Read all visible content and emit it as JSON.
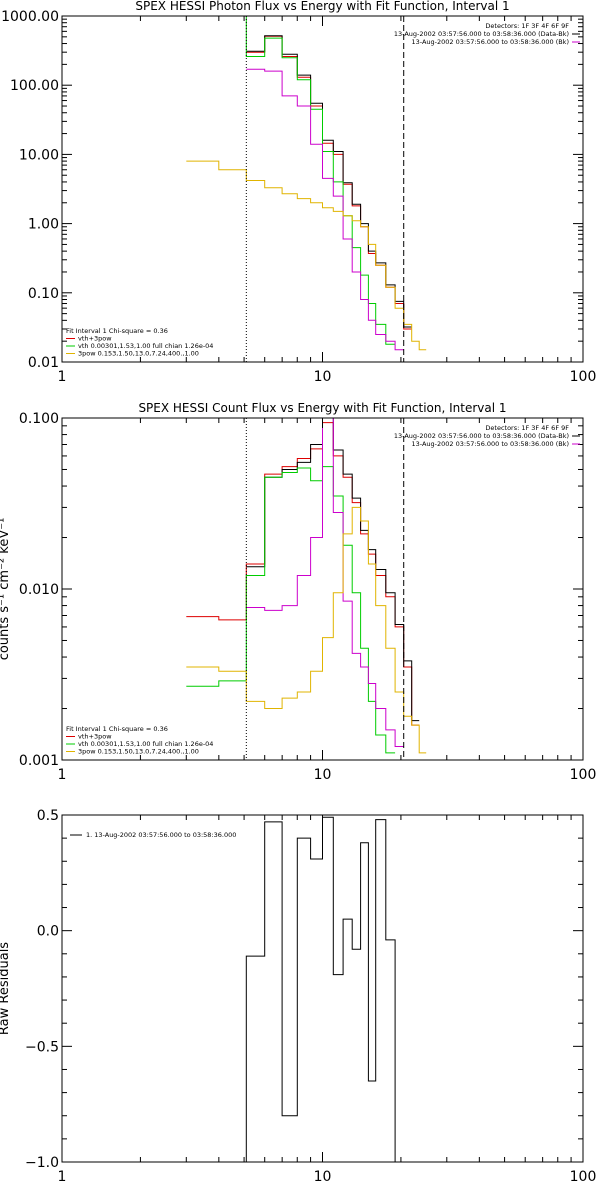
{
  "chart_data": [
    {
      "type": "line",
      "title": "SPEX HESSI Photon Flux vs Energy with Fit Function, Interval 1",
      "xlabel": "",
      "ylabel": "",
      "xscale": "log",
      "yscale": "log",
      "xlim": [
        1,
        100
      ],
      "ylim": [
        0.01,
        1000
      ],
      "xticks": [
        {
          "v": 1,
          "label": "1"
        },
        {
          "v": 10,
          "label": "10"
        },
        {
          "v": 100,
          "label": "100"
        }
      ],
      "yticks": [
        {
          "v": 0.01,
          "label": "0.01"
        },
        {
          "v": 0.1,
          "label": "0.10"
        },
        {
          "v": 1,
          "label": "1.00"
        },
        {
          "v": 10,
          "label": "10.00"
        },
        {
          "v": 100,
          "label": "100.00"
        },
        {
          "v": 1000,
          "label": "1000.00"
        }
      ],
      "grid": false,
      "info_lines": [
        "Detectors: 1F 3F 4F 6F 9F",
        "13-Aug-2002 03:57:56.000 to 03:58:36.000 (Data-Bk)",
        "13-Aug-2002 03:57:56.000 to 03:58:36.000 (Bk)"
      ],
      "info_colors": [
        "#000000",
        "#000000",
        "#cc00cc"
      ],
      "fit_info": [
        "Fit Interval 1    Chi-square = 0.36",
        "vth+3pow",
        "vth 0.00301,1.53,1.00  full chian 1.26e-04",
        "3pow 0.153,1.50,13.0,7.24,400.,1.00"
      ],
      "fit_colors": [
        "#000000",
        "#dd0000",
        "#00cc00",
        "#e0b400"
      ],
      "vlines": [
        {
          "x": 5.1,
          "style": "dotted",
          "color": "#000000"
        },
        {
          "x": 20.5,
          "style": "dashed",
          "color": "#000000"
        }
      ],
      "series": [
        {
          "color": "#dd0000",
          "edges": [
            5.1,
            6.0,
            7.0,
            8.0,
            9.0,
            10.0,
            11.0,
            12.0,
            13.0,
            14.0,
            15.0,
            16.0,
            17.5,
            19.0,
            20.5,
            22.0
          ],
          "values": [
            300,
            510,
            260,
            130,
            50,
            14.5,
            10,
            3.7,
            1.8,
            0.9,
            0.37,
            0.25,
            0.12,
            0.07,
            0.03
          ]
        },
        {
          "color": "#000000",
          "edges": [
            5.1,
            6.0,
            7.0,
            8.0,
            9.0,
            10.0,
            11.0,
            12.0,
            13.0,
            14.0,
            15.0,
            16.0,
            17.5,
            19.0,
            20.5,
            22.0
          ],
          "values": [
            310,
            520,
            280,
            140,
            55,
            16,
            11,
            3.9,
            1.9,
            1.0,
            0.4,
            0.27,
            0.13,
            0.075,
            0.032
          ]
        },
        {
          "color": "#00cc00",
          "edges": [
            3.0,
            4.0,
            5.1,
            6.0,
            7.0,
            8.0,
            9.0,
            10.0,
            11.0,
            12.0,
            13.0,
            14.0,
            15.0,
            16.0,
            17.5,
            19.0
          ],
          "values": [
            1000,
            1000,
            260,
            480,
            250,
            120,
            45,
            11,
            4,
            1.3,
            0.45,
            0.18,
            0.07,
            0.035,
            0.018
          ]
        },
        {
          "color": "#cc00cc",
          "edges": [
            5.1,
            6.0,
            7.0,
            8.0,
            9.0,
            10.0,
            11.0,
            12.0,
            13.0,
            14.0,
            15.0,
            16.0,
            17.5,
            19.0,
            20.5
          ],
          "values": [
            170,
            160,
            70,
            50,
            14,
            4.5,
            2.5,
            0.6,
            0.2,
            0.08,
            0.04,
            0.025,
            0.02,
            0.015
          ]
        },
        {
          "color": "#e0b400",
          "edges": [
            3.0,
            4.0,
            5.1,
            6.0,
            7.0,
            8.0,
            9.0,
            10.0,
            11.0,
            12.0,
            13.0,
            14.0,
            15.0,
            16.0,
            17.5,
            19.0,
            20.5,
            22.0,
            23.5,
            25.0
          ],
          "values": [
            8,
            6,
            4.2,
            3.3,
            2.7,
            2.3,
            2.0,
            1.7,
            1.5,
            1.3,
            1.1,
            0.9,
            0.5,
            0.25,
            0.12,
            0.06,
            0.035,
            0.02,
            0.015
          ]
        }
      ]
    },
    {
      "type": "line",
      "title": "SPEX HESSI Count Flux vs Energy with Fit Function, Interval 1",
      "xlabel": "",
      "ylabel": "counts s⁻¹ cm⁻² keV⁻¹",
      "xscale": "log",
      "yscale": "log",
      "xlim": [
        1,
        100
      ],
      "ylim": [
        0.001,
        0.1
      ],
      "xticks": [
        {
          "v": 1,
          "label": "1"
        },
        {
          "v": 10,
          "label": "10"
        },
        {
          "v": 100,
          "label": "100"
        }
      ],
      "yticks": [
        {
          "v": 0.001,
          "label": "0.001"
        },
        {
          "v": 0.01,
          "label": "0.010"
        },
        {
          "v": 0.1,
          "label": "0.100"
        }
      ],
      "grid": false,
      "info_lines": [
        "Detectors: 1F 3F 4F 6F 9F",
        "13-Aug-2002 03:57:56.000 to 03:58:36.000 (Data-Bk)",
        "13-Aug-2002 03:57:56.000 to 03:58:36.000 (Bk)"
      ],
      "info_colors": [
        "#000000",
        "#000000",
        "#cc00cc"
      ],
      "fit_info": [
        "Fit Interval 1    Chi-square = 0.36",
        "vth+3pow",
        "vth 0.00301,1.53,1.00  full chian 1.26e-04",
        "3pow 0.153,1.50,13.0,7.24,400.,1.00"
      ],
      "fit_colors": [
        "#000000",
        "#dd0000",
        "#00cc00",
        "#e0b400"
      ],
      "vlines": [
        {
          "x": 5.1,
          "style": "dotted",
          "color": "#000000"
        },
        {
          "x": 20.5,
          "style": "dashed",
          "color": "#000000"
        }
      ],
      "series": [
        {
          "color": "#dd0000",
          "edges": [
            3.0,
            4.0,
            5.1,
            6.0,
            7.0,
            8.0,
            9.0,
            10.0,
            11.0,
            12.0,
            13.0,
            14.0,
            15.0,
            16.0,
            17.5,
            19.0,
            20.5,
            22.0,
            23.5
          ],
          "values": [
            0.0069,
            0.0066,
            0.014,
            0.047,
            0.052,
            0.058,
            0.066,
            0.094,
            0.06,
            0.045,
            0.032,
            0.021,
            0.016,
            0.012,
            0.009,
            0.006,
            0.0035,
            0.0016
          ]
        },
        {
          "color": "#000000",
          "edges": [
            5.1,
            6.0,
            7.0,
            8.0,
            9.0,
            10.0,
            11.0,
            12.0,
            13.0,
            14.0,
            15.0,
            16.0,
            17.5,
            19.0,
            20.5,
            22.0,
            23.5
          ],
          "values": [
            0.0135,
            0.045,
            0.05,
            0.055,
            0.07,
            0.1,
            0.065,
            0.047,
            0.034,
            0.022,
            0.017,
            0.013,
            0.0095,
            0.0062,
            0.0038,
            0.0017
          ]
        },
        {
          "color": "#00cc00",
          "edges": [
            3.0,
            4.0,
            5.1,
            6.0,
            7.0,
            8.0,
            9.0,
            10.0,
            11.0,
            12.0,
            13.0,
            14.0,
            15.0,
            16.0,
            17.5,
            19.0
          ],
          "values": [
            0.0027,
            0.0029,
            0.012,
            0.045,
            0.048,
            0.051,
            0.043,
            0.052,
            0.035,
            0.018,
            0.0095,
            0.0045,
            0.0022,
            0.0014,
            0.0011
          ]
        },
        {
          "color": "#cc00cc",
          "edges": [
            5.1,
            6.0,
            7.0,
            8.0,
            9.0,
            10.0,
            11.0,
            12.0,
            13.0,
            14.0,
            15.0,
            16.0,
            17.5,
            19.0,
            20.5
          ],
          "values": [
            0.0078,
            0.0075,
            0.008,
            0.012,
            0.02,
            0.1,
            0.028,
            0.0085,
            0.0042,
            0.0035,
            0.0028,
            0.002,
            0.0015,
            0.0012
          ]
        },
        {
          "color": "#e0b400",
          "edges": [
            3.0,
            4.0,
            5.1,
            6.0,
            7.0,
            8.0,
            9.0,
            10.0,
            11.0,
            12.0,
            13.0,
            14.0,
            15.0,
            16.0,
            17.5,
            19.0,
            20.5,
            22.0,
            23.5,
            25.0
          ],
          "values": [
            0.0035,
            0.0033,
            0.0022,
            0.002,
            0.0023,
            0.0025,
            0.0033,
            0.0052,
            0.0095,
            0.021,
            0.03,
            0.025,
            0.014,
            0.008,
            0.0045,
            0.0025,
            0.0018,
            0.0016,
            0.0011
          ]
        }
      ]
    },
    {
      "type": "line",
      "title": "",
      "xlabel": "",
      "ylabel": "Raw Residuals",
      "xscale": "log",
      "yscale": "linear",
      "xlim": [
        1,
        100
      ],
      "ylim": [
        -1.0,
        0.5
      ],
      "xticks": [
        {
          "v": 1,
          "label": "1"
        },
        {
          "v": 10,
          "label": "10"
        },
        {
          "v": 100,
          "label": "100"
        }
      ],
      "yticks": [
        {
          "v": -1.0,
          "label": "−1.0"
        },
        {
          "v": -0.5,
          "label": "−0.5"
        },
        {
          "v": 0.0,
          "label": "0.0"
        },
        {
          "v": 0.5,
          "label": "0.5"
        }
      ],
      "grid": false,
      "legend": "1. 13-Aug-2002 03:57:56.000 to 03:58:36.000",
      "series": [
        {
          "color": "#000000",
          "edges": [
            5.1,
            6.0,
            7.0,
            8.0,
            9.0,
            10.0,
            11.0,
            12.0,
            13.0,
            14.0,
            15.0,
            16.0,
            17.5,
            19.0,
            20.5
          ],
          "values": [
            -0.11,
            0.47,
            -0.8,
            0.4,
            0.31,
            0.49,
            -0.19,
            0.05,
            -0.08,
            0.38,
            -0.65,
            0.48,
            -0.04,
            -1.0
          ]
        }
      ]
    }
  ]
}
